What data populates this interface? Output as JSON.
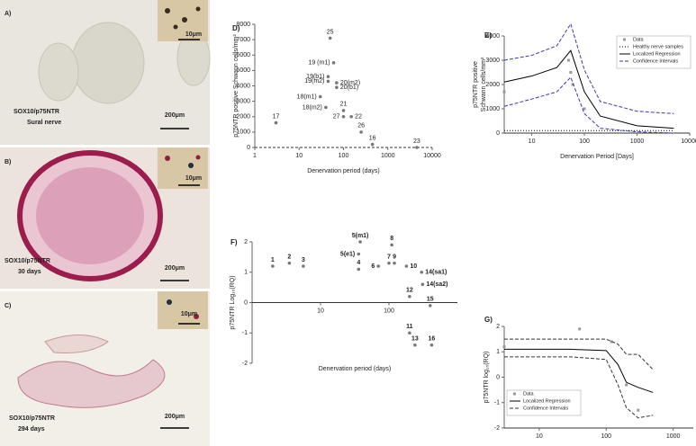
{
  "panels": [
    {
      "label": "A)",
      "inset_scale": "10μm",
      "stain": "SOX10/p75NTR",
      "caption": "Sural nerve",
      "scale": "200μm"
    },
    {
      "label": "B)",
      "inset_scale": "10μm",
      "stain": "SOX10/p75NTR",
      "caption": "30 days",
      "scale": "200μm"
    },
    {
      "label": "C)",
      "inset_scale": "10μm",
      "stain": "SOX10/p75NTR",
      "caption": "294 days",
      "scale": "200μm"
    }
  ],
  "chart_data": [
    {
      "type": "scatter",
      "label": "D)",
      "xlabel": "Denervation period (days)",
      "ylabel": "p75NTR positive Schwann cells/mm²",
      "xscale": "log",
      "xlim": [
        1,
        10000
      ],
      "xticks": [
        1,
        10,
        100,
        1000,
        10000
      ],
      "ylim": [
        0,
        8000
      ],
      "yticks": [
        0,
        1000,
        2000,
        3000,
        4000,
        5000,
        6000,
        7000,
        8000
      ],
      "baseline": "dashed",
      "series": [
        {
          "color": "#777777",
          "x": [
            50,
            60,
            45,
            70,
            45,
            70,
            30,
            40,
            100,
            100,
            150,
            250,
            450,
            4500
          ],
          "values": [
            7100,
            5500,
            4600,
            4200,
            4300,
            3900,
            3300,
            2600,
            2400,
            2000,
            2000,
            1000,
            200,
            0
          ],
          "labels": [
            "25",
            "19 (m1)",
            "19(b1)",
            "20(m2)",
            "19(m2)",
            "20(b1)",
            "18(m1)",
            "18(m2)",
            "21",
            "27",
            "22",
            "26",
            "16",
            "23"
          ]
        },
        {
          "color": "#777777",
          "x": [
            3
          ],
          "values": [
            1600
          ],
          "labels": [
            "17"
          ]
        }
      ]
    },
    {
      "type": "line",
      "label": "E)",
      "xlabel": "Denervation Period [Days]",
      "ylabel": [
        "p75NTR positive",
        "Schwann cells/mm²"
      ],
      "xscale": "log",
      "xlim": [
        3,
        10000
      ],
      "xticks": [
        10,
        100,
        1000,
        10000
      ],
      "ylim": [
        0,
        4000
      ],
      "yticks": [
        0,
        1000,
        2000,
        3000,
        4000
      ],
      "legend": "top-right",
      "series": [
        {
          "name": "Data",
          "style": "points",
          "color": "#999999",
          "x": [
            3,
            50,
            55,
            60,
            100
          ],
          "values": [
            1700,
            3000,
            2500,
            2000,
            1000
          ]
        },
        {
          "name": "Healthy nerve samples",
          "style": "dotted",
          "color": "#000000",
          "x": [
            3,
            5000
          ],
          "values": [
            100,
            100
          ]
        },
        {
          "name": "Localized Regression",
          "style": "solid",
          "color": "#000000",
          "x": [
            3,
            10,
            30,
            55,
            100,
            200,
            1000,
            5000
          ],
          "values": [
            2100,
            2350,
            2700,
            3400,
            1700,
            700,
            300,
            200
          ]
        },
        {
          "name": "Confidence Intervals",
          "style": "dashed",
          "color": "#3a3aa8",
          "x": [
            3,
            10,
            30,
            55,
            100,
            200,
            1000,
            5000
          ],
          "values": [
            3000,
            3200,
            3600,
            4500,
            2600,
            1300,
            900,
            800
          ]
        },
        {
          "style": "dashed",
          "color": "#3a3aa8",
          "x": [
            3,
            10,
            30,
            55,
            100,
            200,
            1000,
            5000
          ],
          "values": [
            1100,
            1400,
            1700,
            2300,
            800,
            200,
            50,
            0
          ]
        }
      ]
    },
    {
      "type": "scatter",
      "label": "F)",
      "xlabel": "Denervation period (days)",
      "ylabel": "p75NTR Log₁₀(RQ)",
      "xscale": "log",
      "x_axis_at_zero": true,
      "xlim": [
        1,
        1000
      ],
      "xticks": [
        10,
        100
      ],
      "ylim": [
        -2,
        2
      ],
      "yticks": [
        -2,
        -1,
        0,
        1,
        2
      ],
      "series": [
        {
          "color": "#777777",
          "x": [
            2,
            3.5,
            5.6,
            36,
            36,
            38,
            70,
            100,
            110,
            120,
            180,
            200,
            200,
            240,
            300,
            310,
            400,
            420
          ],
          "values": [
            1.2,
            1.3,
            1.2,
            1.1,
            1.6,
            2.0,
            1.2,
            1.3,
            1.9,
            1.3,
            1.2,
            0.2,
            -1.0,
            -1.4,
            1.0,
            0.6,
            -0.1,
            -1.4
          ],
          "labels": [
            "1",
            "2",
            "3",
            "4",
            "5(e1)",
            "5(m1)",
            "6",
            "7",
            "8",
            "9",
            "10",
            "12",
            "11",
            "13",
            "14(sa1)",
            "14(sa2)",
            "15",
            "16"
          ]
        }
      ]
    },
    {
      "type": "line",
      "label": "G)",
      "xlabel": "Denervation Period [Days]",
      "ylabel": "p75NTR log₁₀(RQ)",
      "xscale": "log",
      "xlim": [
        3,
        2000
      ],
      "xticks": [
        10,
        100,
        1000
      ],
      "ylim": [
        -2,
        2
      ],
      "yticks": [
        -2,
        -1,
        0,
        1,
        2
      ],
      "legend": "bottom-left",
      "series": [
        {
          "name": "Data",
          "style": "points",
          "color": "#999999",
          "x": [
            3,
            40,
            120,
            200,
            300
          ],
          "values": [
            1.2,
            1.9,
            1.4,
            -0.3,
            -1.3
          ]
        },
        {
          "name": "Localized Regression",
          "style": "solid",
          "color": "#000000",
          "x": [
            3,
            10,
            30,
            100,
            150,
            200,
            300,
            500
          ],
          "values": [
            1.1,
            1.1,
            1.1,
            1.05,
            0.5,
            -0.2,
            -0.4,
            -0.6
          ]
        },
        {
          "name": "Confidence Intervals",
          "style": "dashed",
          "color": "#333333",
          "x": [
            3,
            10,
            30,
            100,
            150,
            200,
            300,
            500
          ],
          "values": [
            1.5,
            1.5,
            1.5,
            1.5,
            1.3,
            0.9,
            0.9,
            0.3
          ]
        },
        {
          "style": "dashed",
          "color": "#333333",
          "x": [
            3,
            10,
            30,
            100,
            150,
            200,
            300,
            500
          ],
          "values": [
            0.8,
            0.8,
            0.8,
            0.7,
            -0.3,
            -1.2,
            -1.6,
            -1.5
          ]
        }
      ]
    }
  ]
}
